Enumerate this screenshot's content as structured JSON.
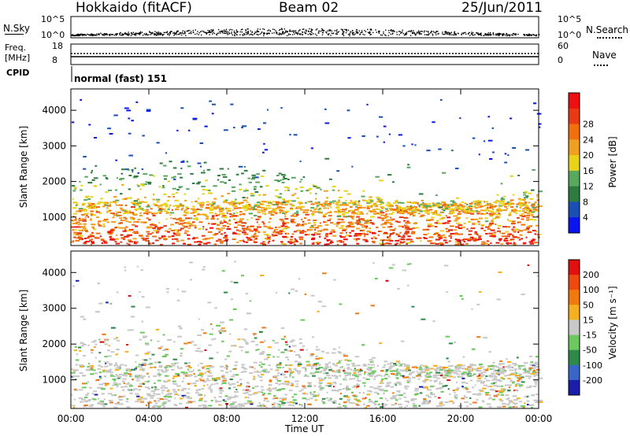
{
  "header": {
    "station": "Hokkaido (fitACF)",
    "beam": "Beam 02",
    "date": "25/Jun/2011"
  },
  "noise_panel": {
    "left_label": "N.Sky",
    "right_label": "N.Search",
    "left_ticks": [
      "10^5",
      "10^0"
    ],
    "right_ticks": [
      "10^5",
      "10^0"
    ]
  },
  "freq_panel": {
    "left_label_top": "Freq.",
    "left_label_bottom": "[MHz]",
    "right_label": "Nave",
    "left_ticks": [
      "18",
      "8"
    ],
    "right_ticks": [
      "60",
      "0"
    ]
  },
  "cpid": {
    "label": "CPID",
    "value": "normal (fast) 151"
  },
  "chart_data": [
    {
      "type": "heatmap",
      "ylabel": "Slant Range [km]",
      "xlabel": "",
      "ylim": [
        200,
        4600
      ],
      "yticks": [
        "1000",
        "2000",
        "3000",
        "4000"
      ],
      "colorbar": {
        "label": "Power [dB]",
        "ticks": [
          "4",
          "8",
          "12",
          "16",
          "20",
          "24",
          "28"
        ],
        "colors": [
          "#0a14ee",
          "#1a4fb4",
          "#2f7a3f",
          "#5aa860",
          "#e8d21a",
          "#f0a020",
          "#f07010",
          "#e83a14",
          "#ee1010"
        ]
      }
    },
    {
      "type": "heatmap",
      "ylabel": "Slant Range [km]",
      "xlabel": "Time UT",
      "ylim": [
        200,
        4600
      ],
      "yticks": [
        "1000",
        "2000",
        "3000",
        "4000"
      ],
      "xticks": [
        "00:00",
        "04:00",
        "08:00",
        "12:00",
        "16:00",
        "20:00",
        "00:00"
      ],
      "colorbar": {
        "label": "Velocity [m s⁻¹]",
        "ticks": [
          "200",
          "100",
          "50",
          "15",
          "-15",
          "-50",
          "-100",
          "-200"
        ],
        "colors": [
          "#1a1ea8",
          "#3a66c8",
          "#2e8a4a",
          "#6ec860",
          "#c8c8c8",
          "#f5b020",
          "#f07a10",
          "#ee4a10",
          "#e01010"
        ]
      }
    }
  ]
}
